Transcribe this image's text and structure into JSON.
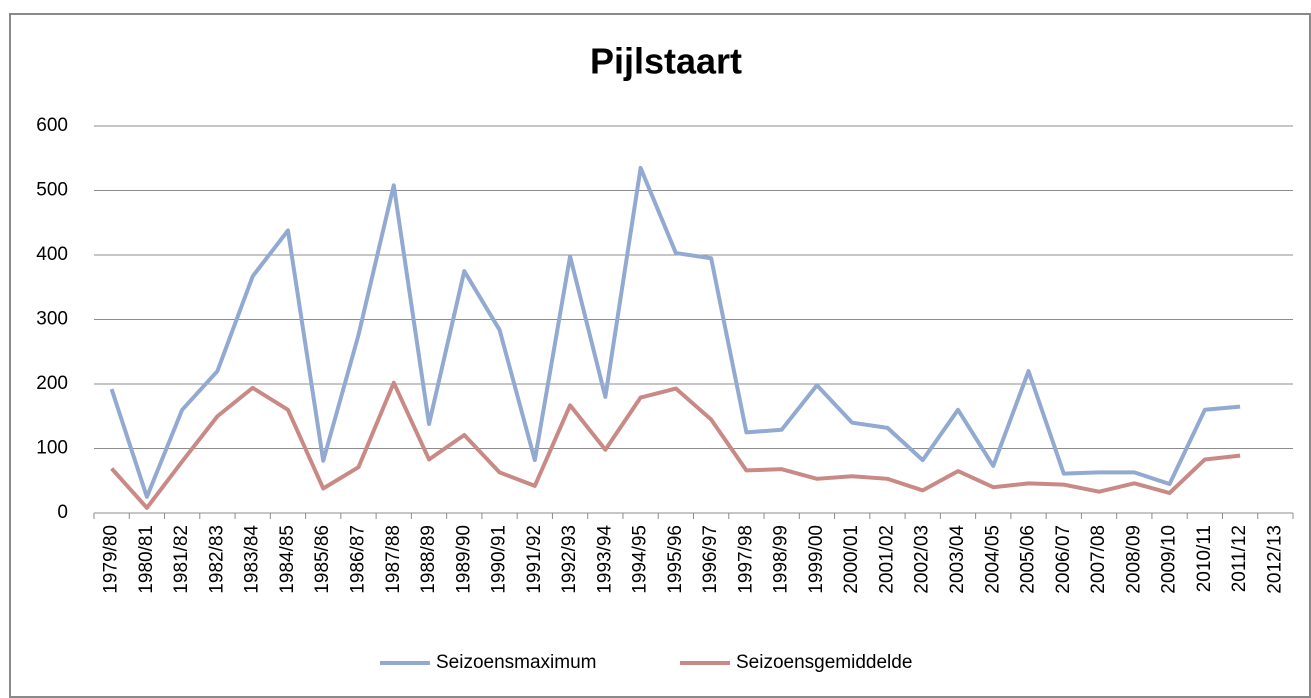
{
  "chart_data": {
    "type": "line",
    "title": "Pijlstaart",
    "categories": [
      "1979/80",
      "1980/81",
      "1981/82",
      "1982/83",
      "1983/84",
      "1984/85",
      "1985/86",
      "1986/87",
      "1987/88",
      "1988/89",
      "1989/90",
      "1990/91",
      "1991/92",
      "1992/93",
      "1993/94",
      "1994/95",
      "1995/96",
      "1996/97",
      "1997/98",
      "1998/99",
      "1999/00",
      "2000/01",
      "2001/02",
      "2002/03",
      "2003/04",
      "2004/05",
      "2005/06",
      "2006/07",
      "2007/08",
      "2008/09",
      "2009/10",
      "2010/11",
      "2011/12",
      "2012/13"
    ],
    "series": [
      {
        "name": "Seizoensmaximum",
        "color": "#92a9d1",
        "values": [
          192,
          25,
          160,
          220,
          367,
          438,
          81,
          276,
          508,
          138,
          375,
          284,
          82,
          398,
          180,
          535,
          403,
          395,
          125,
          129,
          198,
          140,
          132,
          82,
          160,
          73,
          220,
          61,
          63,
          63,
          45,
          160,
          165,
          null
        ]
      },
      {
        "name": "Seizoensgemiddelde",
        "color": "#c98a86",
        "values": [
          69,
          8,
          80,
          150,
          194,
          160,
          38,
          71,
          202,
          83,
          121,
          63,
          42,
          167,
          98,
          179,
          193,
          145,
          66,
          68,
          53,
          57,
          53,
          35,
          65,
          40,
          46,
          44,
          33,
          46,
          31,
          83,
          89,
          null
        ]
      }
    ],
    "ylim": [
      0,
      600
    ],
    "yticks": [
      0,
      100,
      200,
      300,
      400,
      500,
      600
    ],
    "grid": true,
    "legend": "bottom"
  }
}
